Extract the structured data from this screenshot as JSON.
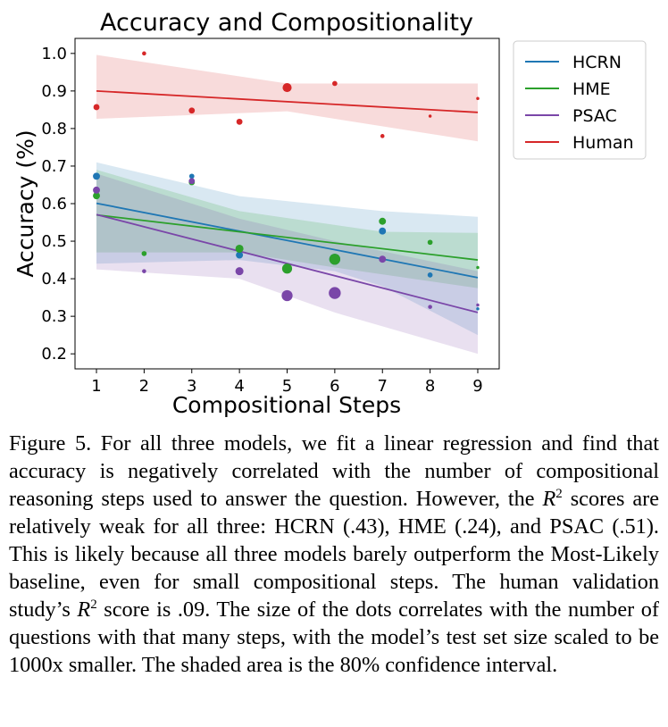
{
  "chart_data": {
    "type": "scatter",
    "title": "Accuracy and Compositionality",
    "xlabel": "Compositional Steps",
    "ylabel": "Accuracy (%)",
    "xlim": [
      0.55,
      9.45
    ],
    "ylim": [
      0.16,
      1.04
    ],
    "x_ticks": [
      "1",
      "2",
      "3",
      "4",
      "5",
      "6",
      "7",
      "8",
      "9"
    ],
    "y_ticks": [
      "0.2",
      "0.3",
      "0.4",
      "0.5",
      "0.6",
      "0.7",
      "0.8",
      "0.9",
      "1.0"
    ],
    "grid": false,
    "legend_position": "outside-right",
    "series": [
      {
        "name": "HCRN",
        "color": "#1f77b4",
        "points": [
          [
            1,
            0.673
          ],
          [
            3,
            0.673
          ],
          [
            4,
            0.463
          ],
          [
            5,
            0.427
          ],
          [
            6,
            0.452
          ],
          [
            7,
            0.527
          ],
          [
            8,
            0.41
          ],
          [
            9,
            0.32
          ]
        ],
        "sizes": [
          5,
          3,
          5,
          7,
          9,
          5,
          3,
          1
        ],
        "fit_line": [
          [
            1,
            0.601
          ],
          [
            9,
            0.403
          ]
        ],
        "ci_upper": [
          [
            1,
            0.71
          ],
          [
            4,
            0.62
          ],
          [
            7,
            0.58
          ],
          [
            9,
            0.565
          ]
        ],
        "ci_lower": [
          [
            1,
            0.44
          ],
          [
            4,
            0.45
          ],
          [
            6,
            0.42
          ],
          [
            7,
            0.38
          ],
          [
            9,
            0.25
          ]
        ]
      },
      {
        "name": "HME",
        "color": "#2ca02c",
        "points": [
          [
            1,
            0.621
          ],
          [
            2,
            0.467
          ],
          [
            3,
            0.657
          ],
          [
            4,
            0.48
          ],
          [
            5,
            0.427
          ],
          [
            6,
            0.452
          ],
          [
            7,
            0.553
          ],
          [
            8,
            0.497
          ],
          [
            9,
            0.43
          ]
        ],
        "sizes": [
          5,
          3,
          4,
          6,
          8,
          9,
          5,
          3,
          1
        ],
        "fit_line": [
          [
            1,
            0.57
          ],
          [
            9,
            0.45
          ]
        ],
        "ci_upper": [
          [
            1,
            0.69
          ],
          [
            4,
            0.58
          ],
          [
            7,
            0.525
          ],
          [
            9,
            0.522
          ]
        ],
        "ci_lower": [
          [
            1,
            0.47
          ],
          [
            4,
            0.47
          ],
          [
            6,
            0.43
          ],
          [
            9,
            0.375
          ]
        ]
      },
      {
        "name": "PSAC",
        "color": "#7a46a8",
        "points": [
          [
            1,
            0.636
          ],
          [
            2,
            0.42
          ],
          [
            3,
            0.66
          ],
          [
            4,
            0.42
          ],
          [
            5,
            0.355
          ],
          [
            6,
            0.362
          ],
          [
            7,
            0.452
          ],
          [
            8,
            0.325
          ],
          [
            9,
            0.33
          ]
        ],
        "sizes": [
          5,
          2,
          4,
          6,
          9,
          10,
          5,
          2,
          1
        ],
        "fit_line": [
          [
            1,
            0.571
          ],
          [
            9,
            0.31
          ]
        ],
        "ci_upper": [
          [
            1,
            0.68
          ],
          [
            4,
            0.56
          ],
          [
            6,
            0.5
          ],
          [
            9,
            0.42
          ]
        ],
        "ci_lower": [
          [
            1,
            0.425
          ],
          [
            4,
            0.4
          ],
          [
            6,
            0.31
          ],
          [
            9,
            0.2
          ]
        ]
      },
      {
        "name": "Human",
        "color": "#d62728",
        "points": [
          [
            1,
            0.857
          ],
          [
            2,
            1.0
          ],
          [
            3,
            0.848
          ],
          [
            4,
            0.818
          ],
          [
            5,
            0.909
          ],
          [
            6,
            0.92
          ],
          [
            7,
            0.78
          ],
          [
            8,
            0.833
          ],
          [
            9,
            0.88
          ]
        ],
        "sizes": [
          4,
          2,
          4,
          4,
          7,
          3,
          2,
          1,
          1
        ],
        "fit_line": [
          [
            1,
            0.9
          ],
          [
            9,
            0.843
          ]
        ],
        "ci_upper": [
          [
            1,
            0.996
          ],
          [
            5,
            0.92
          ],
          [
            9,
            0.92
          ]
        ],
        "ci_lower": [
          [
            1,
            0.826
          ],
          [
            5,
            0.846
          ],
          [
            9,
            0.766
          ]
        ]
      }
    ]
  },
  "caption": {
    "p1": "Figure 5. For all three models, we fit a linear regression and find that accuracy is negatively correlated with the number of compositional reasoning steps used to answer the question. However, the ",
    "r_symbol": "R",
    "exp_2": "2",
    "p2": " scores are relatively weak for all three: HCRN (.43), HME (.24), and PSAC (.51).  This is likely because all three models barely outperform the Most-Likely baseline, even for small compositional steps.  The human validation study’s ",
    "p3": " score is .09. The size of the dots correlates with the number of questions with that many steps, with the model’s test set size scaled to be 1000x smaller. The shaded area is the 80% confidence interval."
  }
}
